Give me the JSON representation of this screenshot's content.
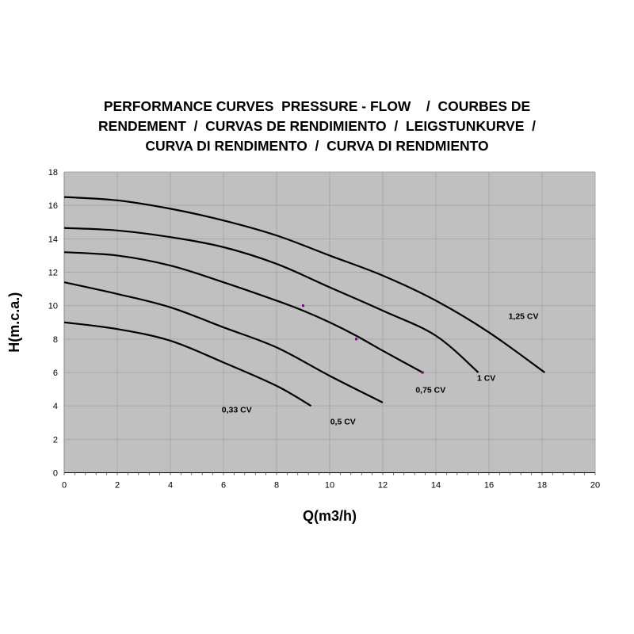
{
  "chart_data": {
    "type": "line",
    "title_lines": [
      "PERFORMANCE CURVES  PRESSURE - FLOW    /  COURBES DE",
      "RENDEMENT  /  CURVAS DE RENDIMIENTO  /  LEIGSTUNKURVE  /",
      "CURVA DI RENDIMENTO  /  CURVA DI RENDMIENTO"
    ],
    "xlabel": "Q(m3/h)",
    "ylabel": "H(m.c.a.)",
    "xlim": [
      0,
      20
    ],
    "ylim": [
      0,
      18
    ],
    "xticks": [
      0,
      2,
      4,
      6,
      8,
      10,
      12,
      14,
      16,
      18,
      20
    ],
    "yticks": [
      0,
      2,
      4,
      6,
      8,
      10,
      12,
      14,
      16,
      18
    ],
    "grid": true,
    "plot_background": "#c0c0c0",
    "line_color": "#000000",
    "marker_color": "#800080",
    "series": [
      {
        "name": "1,25 CV",
        "x": [
          0,
          2,
          4,
          6,
          8,
          10,
          12,
          14,
          16,
          18.1
        ],
        "y": [
          16.5,
          16.3,
          15.8,
          15.1,
          14.2,
          13.0,
          11.8,
          10.3,
          8.4,
          6.0
        ],
        "label_at": [
          17.3,
          9.2
        ]
      },
      {
        "name": "1 CV",
        "x": [
          0,
          2,
          4,
          6,
          8,
          10,
          12,
          14,
          15.6
        ],
        "y": [
          14.65,
          14.5,
          14.1,
          13.5,
          12.5,
          11.1,
          9.7,
          8.2,
          6.0
        ],
        "label_at": [
          15.9,
          5.5
        ]
      },
      {
        "name": "0,75 CV",
        "x": [
          0,
          2,
          4,
          6,
          8,
          9,
          10,
          11,
          12,
          13.5
        ],
        "y": [
          13.2,
          13.0,
          12.4,
          11.4,
          10.3,
          9.7,
          9.0,
          8.2,
          7.3,
          6.0
        ],
        "label_at": [
          13.8,
          4.8
        ]
      },
      {
        "name": "0,5 CV",
        "x": [
          0,
          2,
          4,
          6,
          8,
          10,
          12
        ],
        "y": [
          11.4,
          10.7,
          9.9,
          8.7,
          7.5,
          5.8,
          4.2
        ],
        "label_at": [
          10.5,
          2.9
        ]
      },
      {
        "name": "0,33 CV",
        "x": [
          0,
          2,
          4,
          6,
          8,
          9.3
        ],
        "y": [
          9.0,
          8.6,
          7.9,
          6.6,
          5.2,
          4.0
        ],
        "label_at": [
          6.5,
          3.6
        ]
      }
    ],
    "markers": [
      {
        "x": 9,
        "y": 10
      },
      {
        "x": 11,
        "y": 8
      },
      {
        "x": 13.5,
        "y": 6
      }
    ]
  }
}
